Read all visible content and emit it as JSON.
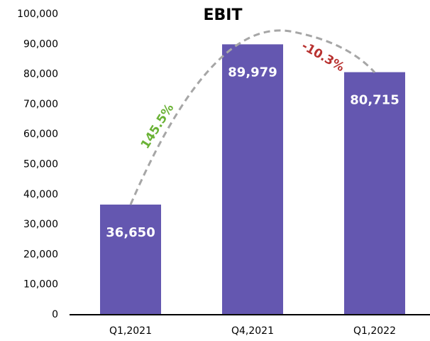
{
  "chart_data": {
    "type": "bar",
    "title": "EBIT",
    "categories": [
      "Q1,2021",
      "Q4,2021",
      "Q1,2022"
    ],
    "values": [
      36650,
      89979,
      80715
    ],
    "value_labels": [
      "36,650",
      "89,979",
      "80,715"
    ],
    "color": "#6457b0",
    "ylim": [
      0,
      100000
    ],
    "yticks": [
      0,
      {
        "value": 10000,
        "label": "10,000"
      },
      {
        "value": 20000,
        "label": "20,000"
      },
      {
        "value": 30000,
        "label": "30,000"
      },
      {
        "value": 40000,
        "label": "40,000"
      },
      {
        "value": 50000,
        "label": "50,000"
      },
      {
        "value": 60000,
        "label": "60,000"
      },
      {
        "value": 70000,
        "label": "70,000"
      },
      {
        "value": 80000,
        "label": "80,000"
      },
      {
        "value": 90000,
        "label": "90,000"
      },
      {
        "value": 100000,
        "label": "100,000"
      }
    ],
    "grid": false,
    "annotations": [
      {
        "text": "145.5%",
        "color": "#6ab235"
      },
      {
        "text": "-10.3%",
        "color": "#b8312f"
      }
    ]
  }
}
